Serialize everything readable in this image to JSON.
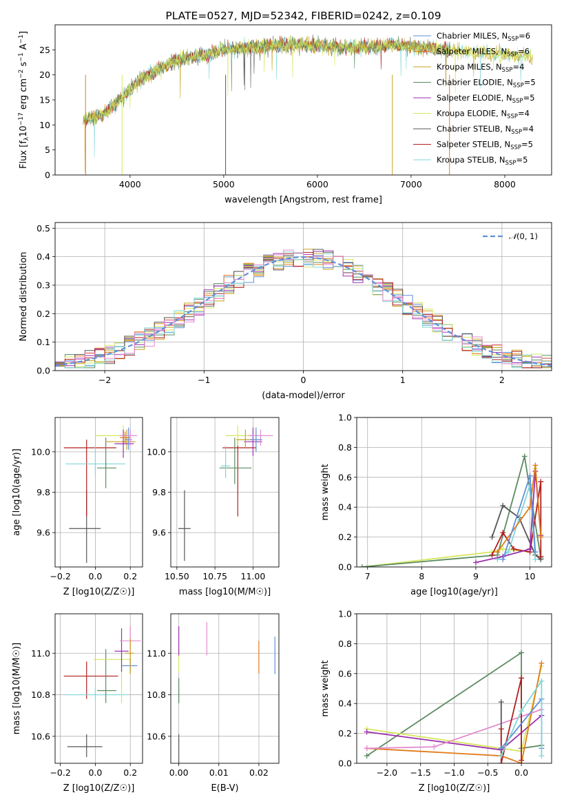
{
  "colors": {
    "blue": "#5f8fd8",
    "orange": "#e07b1a",
    "gold": "#c8a21e",
    "green": "#5a8a5e",
    "purple": "#9b2fae",
    "yellow": "#d6e65c",
    "gray": "#555555",
    "red": "#b01e1e",
    "cyan": "#7fd6d6",
    "pink": "#e38ad0",
    "dash": "#5f8fd8"
  },
  "chart_data": [
    {
      "type": "line",
      "title": "PLATE=0527, MJD=52342, FIBERID=0242, z=0.109",
      "xlabel": "wavelength [Angstrom, rest frame]",
      "ylabel": "Flux [f_λ10^-17 erg cm^-2 s^-1 A^-1]",
      "xlim": [
        3200,
        8500
      ],
      "ylim": [
        0,
        30
      ],
      "xticks": [
        "4000",
        "5000",
        "6000",
        "7000",
        "8000"
      ],
      "yticks": [
        "0",
        "5",
        "10",
        "15",
        "20",
        "25"
      ],
      "legend_position": "right",
      "legend": [
        {
          "name": "Chabrier MILES",
          "nssp": "6",
          "color": "blue"
        },
        {
          "name": "Salpeter MILES",
          "nssp": "6",
          "color": "orange"
        },
        {
          "name": "Kroupa MILES",
          "nssp": "4",
          "color": "gold"
        },
        {
          "name": "Chabrier ELODIE",
          "nssp": "5",
          "color": "green"
        },
        {
          "name": "Salpeter ELODIE",
          "nssp": "5",
          "color": "purple"
        },
        {
          "name": "Kroupa ELODIE",
          "nssp": "4",
          "color": "yellow"
        },
        {
          "name": "Chabrier STELIB",
          "nssp": "4",
          "color": "gray"
        },
        {
          "name": "Salpeter STELIB",
          "nssp": "5",
          "color": "red"
        },
        {
          "name": "Kroupa STELIB",
          "nssp": "5",
          "color": "cyan"
        }
      ],
      "spectrum_continuum": {
        "x": [
          3500,
          3700,
          3900,
          4100,
          4300,
          4500,
          4800,
          5000,
          5300,
          5600,
          5900,
          6200,
          6500,
          6800,
          7100,
          7400,
          7700,
          8000,
          8300
        ],
        "y": [
          11,
          12,
          15,
          19,
          21,
          23,
          24,
          25,
          25.5,
          26,
          26,
          25.5,
          25.5,
          26,
          25.5,
          25,
          24.5,
          24,
          23.5
        ]
      }
    },
    {
      "type": "histogram",
      "xlabel": "(data-model)/error",
      "ylabel": "Normed distribution",
      "xlim": [
        -2.5,
        2.5
      ],
      "ylim": [
        0,
        0.52
      ],
      "xticks": [
        "−2",
        "−1",
        "0",
        "1",
        "2"
      ],
      "yticks": [
        "0.0",
        "0.1",
        "0.2",
        "0.3",
        "0.4",
        "0.5"
      ],
      "grid": true,
      "reference_curve": "N(0,1)",
      "legend_position": "top-right",
      "bin_width": 0.1
    },
    {
      "type": "scatter",
      "xlabel": "Z [log10(Z/Z☉)]",
      "ylabel": "age [log10(age/yr)]",
      "xlim": [
        -0.23,
        0.27
      ],
      "ylim": [
        9.43,
        10.17
      ],
      "xticks": [
        "−0.2",
        "0.0",
        "0.2"
      ],
      "yticks": [
        "9.6",
        "9.8",
        "10.0"
      ],
      "grid": true
    },
    {
      "type": "scatter",
      "xlabel": "mass [log10(M/M☉)]",
      "ylabel": "",
      "xlim": [
        10.46,
        11.17
      ],
      "ylim": [
        9.43,
        10.17
      ],
      "xticks": [
        "10.50",
        "10.75",
        "11.00"
      ],
      "yticks": [
        "9.6",
        "9.8",
        "10.0"
      ],
      "grid": true
    },
    {
      "type": "line",
      "xlabel": "age [log10(age/yr)]",
      "ylabel": "mass weight",
      "xlim": [
        6.8,
        10.4
      ],
      "ylim": [
        0,
        1
      ],
      "xticks": [
        "7",
        "8",
        "9",
        "10"
      ],
      "yticks": [
        "0.0",
        "0.2",
        "0.4",
        "0.6",
        "0.8",
        "1.0"
      ],
      "grid": true
    },
    {
      "type": "scatter",
      "xlabel": "Z [log10(Z/Z☉)]",
      "ylabel": "mass [log10(M/M☉)]",
      "xlim": [
        -0.23,
        0.27
      ],
      "ylim": [
        10.47,
        11.19
      ],
      "xticks": [
        "−0.2",
        "0.0",
        "0.2"
      ],
      "yticks": [
        "10.6",
        "10.8",
        "11.0"
      ],
      "grid": true
    },
    {
      "type": "scatter",
      "xlabel": "E(B-V)",
      "ylabel": "",
      "xlim": [
        -0.002,
        0.025
      ],
      "ylim": [
        10.47,
        11.19
      ],
      "xticks": [
        "0.00",
        "0.01",
        "0.02"
      ],
      "yticks": [
        "10.6",
        "10.8",
        "11.0"
      ],
      "grid": true
    },
    {
      "type": "line",
      "xlabel": "Z [log10(Z/Z☉)]",
      "ylabel": "mass weight",
      "xlim": [
        -2.45,
        0.45
      ],
      "ylim": [
        0,
        1
      ],
      "xticks": [
        "−2.0",
        "−1.5",
        "−1.0",
        "−0.5",
        "0.0"
      ],
      "yticks": [
        "0.0",
        "0.2",
        "0.4",
        "0.6",
        "0.8",
        "1.0"
      ],
      "grid": true
    }
  ]
}
